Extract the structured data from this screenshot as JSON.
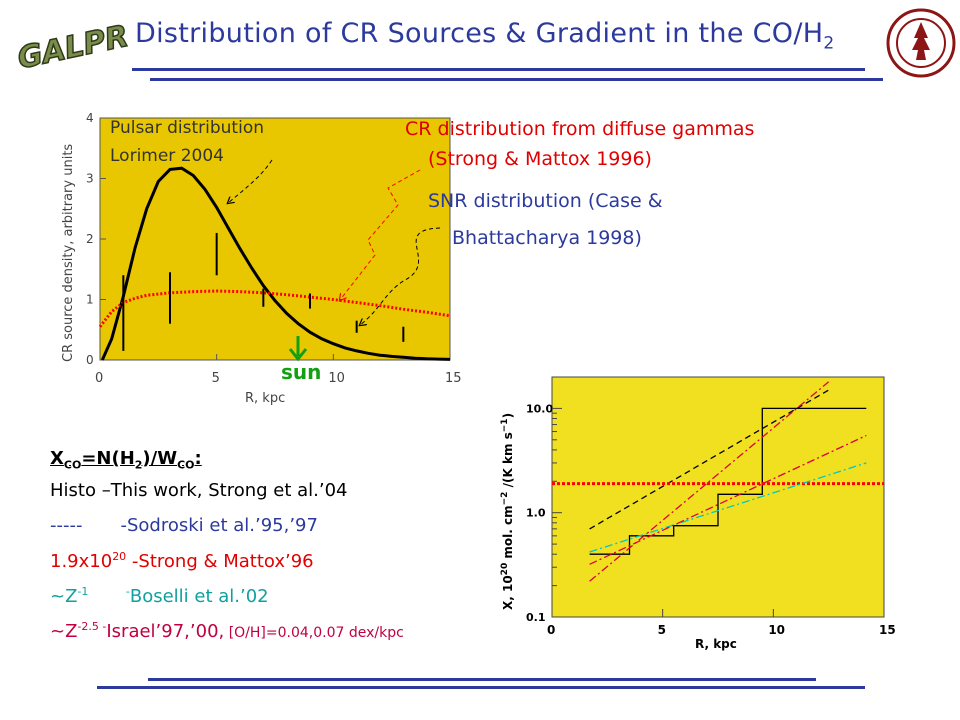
{
  "header": {
    "title": "Distribution of CR Sources & Gradient in the CO/H",
    "title_sub": "2",
    "logo_text": "GALPROP"
  },
  "annotations": {
    "pulsar_line1": "Pulsar distribution",
    "pulsar_line2": "Lorimer 2004",
    "cr_line1": "CR distribution from diffuse gammas",
    "cr_line2": "(Strong & Mattox 1996)",
    "snr_line1": "SNR distribution (Case &",
    "snr_line2": "Bhattacharya 1998)",
    "sun": "sun"
  },
  "legend": {
    "heading_a": "X",
    "heading_a_sub": "CO",
    "heading_b": "=N(H",
    "heading_b_sub": "2",
    "heading_c": ")/W",
    "heading_c_sub": "CO",
    "heading_d": ":",
    "row1": "Histo –This work, Strong et al.’04",
    "row2_a": "-----",
    "row2_b": "-Sodroski et al.’95,’97",
    "row3_a": "1.9x10",
    "row3_sup": "20",
    "row3_b": " -Strong & Mattox’96",
    "row4_a": "~Z",
    "row4_sup": "-1",
    "row4_b": " -",
    "row4_c": "Boselli et al.’02",
    "row5_a": "~Z",
    "row5_sup": "-2.5",
    "row5_b": " -",
    "row5_c": "Israel’97,’00,",
    "row5_d": " [O/H]=0.04,0.07 dex/kpc"
  },
  "chart_data": [
    {
      "type": "line",
      "title": "",
      "xlabel": "R, kpc",
      "ylabel": "CR source density, arbitrary units",
      "xlim": [
        0,
        15
      ],
      "ylim": [
        0,
        4
      ],
      "xticks": [
        "0",
        "5",
        "10",
        "15"
      ],
      "yticks": [
        "0",
        "1",
        "2",
        "3",
        "4"
      ],
      "background": "#e8c700",
      "series": [
        {
          "label": "Pulsar distribution Lorimer 2004",
          "color": "#000000",
          "style": "solid",
          "x": [
            0.1,
            0.5,
            1,
            1.5,
            2,
            2.5,
            3,
            3.5,
            4,
            4.5,
            5,
            5.5,
            6,
            6.5,
            7,
            7.5,
            8,
            8.5,
            9,
            9.5,
            10,
            10.5,
            11,
            11.5,
            12,
            12.5,
            13,
            13.5,
            14,
            14.5,
            15
          ],
          "y": [
            0,
            0.35,
            1.05,
            1.85,
            2.5,
            2.95,
            3.15,
            3.17,
            3.05,
            2.82,
            2.52,
            2.18,
            1.84,
            1.52,
            1.23,
            0.98,
            0.77,
            0.6,
            0.46,
            0.35,
            0.27,
            0.2,
            0.15,
            0.11,
            0.08,
            0.06,
            0.045,
            0.03,
            0.02,
            0.015,
            0.01
          ]
        },
        {
          "label": "CR distribution from diffuse gammas (Strong & Mattox 1996)",
          "color": "#ff0000",
          "style": "dotted",
          "x": [
            0,
            0.5,
            1,
            1.5,
            2,
            3,
            4,
            5,
            6,
            7,
            8,
            9,
            10,
            11,
            12,
            13,
            14,
            15
          ],
          "y": [
            0.55,
            0.8,
            0.95,
            1.02,
            1.07,
            1.11,
            1.13,
            1.14,
            1.13,
            1.11,
            1.08,
            1.04,
            1.0,
            0.95,
            0.9,
            0.84,
            0.79,
            0.73
          ]
        },
        {
          "label": "SNR distribution (Case & Bhattacharya 1998)",
          "color": "#000000",
          "style": "error-bars",
          "x": [
            1,
            3,
            5,
            7,
            9,
            11,
            13
          ],
          "y_low": [
            0.15,
            0.6,
            1.4,
            0.88,
            0.85,
            0.45,
            0.3
          ],
          "y_high": [
            1.4,
            1.45,
            2.1,
            1.18,
            1.1,
            0.65,
            0.55
          ]
        }
      ]
    },
    {
      "type": "line",
      "title": "",
      "xlabel": "R, kpc",
      "ylabel": "X, 10^20 mol. cm^-2 /(K km s^-1)",
      "xscale": "linear",
      "yscale": "log",
      "xlim": [
        0,
        15
      ],
      "ylim": [
        0.1,
        20
      ],
      "xticks": [
        "0",
        "5",
        "10",
        "15"
      ],
      "yticks": [
        "0.1",
        "1.0",
        "10.0"
      ],
      "background": "#f0e020",
      "series": [
        {
          "label": "Histo –This work, Strong et al.'04",
          "color": "#000000",
          "style": "step",
          "x": [
            1.7,
            3.5,
            3.5,
            5.5,
            5.5,
            7.5,
            7.5,
            9.5,
            9.5,
            14.2
          ],
          "y": [
            0.4,
            0.4,
            0.6,
            0.6,
            0.75,
            0.75,
            1.5,
            1.5,
            10.0,
            10.0
          ]
        },
        {
          "label": "Sodroski et al.'95,'97",
          "color": "#000000",
          "style": "dashed",
          "x": [
            1.7,
            12.5
          ],
          "y": [
            0.7,
            15
          ]
        },
        {
          "label": "1.9x10^20 -Strong & Mattox'96",
          "color": "#ff0000",
          "style": "dotted",
          "x": [
            0,
            15
          ],
          "y": [
            1.9,
            1.9
          ]
        },
        {
          "label": "~Z^-1 -Boselli et al.'02",
          "color": "#00c8c8",
          "style": "dash-dot",
          "x": [
            1.7,
            14.2
          ],
          "y": [
            0.42,
            3.0
          ]
        },
        {
          "label": "~Z^-2.5 -Israel'97 (0.04 dex/kpc)",
          "color": "#e0003c",
          "style": "dash-dot",
          "x": [
            1.7,
            14.2
          ],
          "y": [
            0.32,
            5.5
          ]
        },
        {
          "label": "~Z^-2.5 -Israel'00 (0.07 dex/kpc)",
          "color": "#e0003c",
          "style": "dash-dot",
          "x": [
            1.7,
            12.5
          ],
          "y": [
            0.22,
            18
          ]
        }
      ]
    }
  ]
}
